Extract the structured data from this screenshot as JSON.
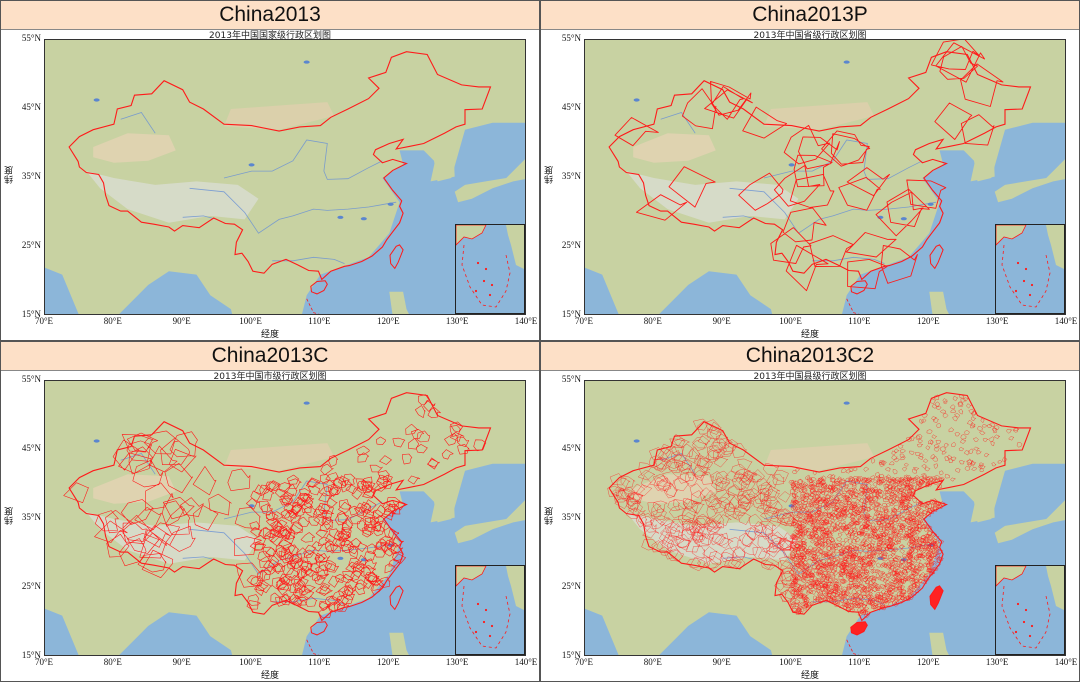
{
  "panels": [
    {
      "title": "China2013",
      "subtitle": "2013年中国国家级行政区划图",
      "level": "country"
    },
    {
      "title": "China2013P",
      "subtitle": "2013年中国省级行政区划图",
      "level": "province"
    },
    {
      "title": "China2013C",
      "subtitle": "2013年中国市级行政区划图",
      "level": "city"
    },
    {
      "title": "China2013C2",
      "subtitle": "2013年中国县级行政区划图",
      "level": "county"
    }
  ],
  "axes": {
    "y_ticks": [
      "55°N",
      "45°N",
      "35°N",
      "25°N",
      "15°N"
    ],
    "x_ticks": [
      "70°E",
      "80°E",
      "90°E",
      "100°E",
      "110°E",
      "120°E",
      "130°E",
      "140°E"
    ],
    "xlabel": "经度",
    "ylabel": "纬度"
  },
  "colors": {
    "header_bg": "#fde0c7",
    "boundary": "#ff1a1a",
    "ocean": "#8cb6d9",
    "land": "#c9d3a4"
  }
}
